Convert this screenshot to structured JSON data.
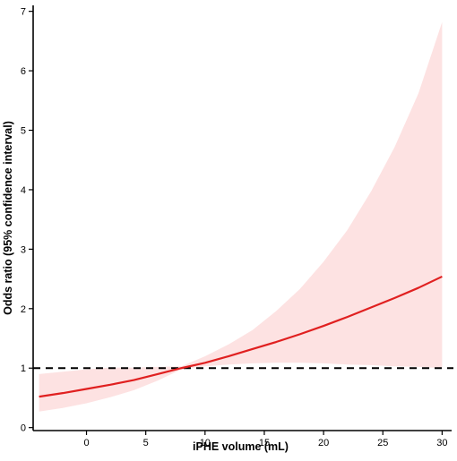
{
  "chart_data": {
    "type": "line",
    "title": "",
    "xlabel": "iPHE volume (mL)",
    "ylabel": "Odds ratio (95% confidence interval)",
    "xlim": [
      -4.5,
      30.5
    ],
    "ylim": [
      -0.05,
      7.1
    ],
    "x_ticks": [
      "0",
      "5",
      "10",
      "15",
      "20",
      "25",
      "30"
    ],
    "y_ticks": [
      "0",
      "1",
      "2",
      "3",
      "4",
      "5",
      "6",
      "7"
    ],
    "reference_line": {
      "y": 1,
      "style": "dashed",
      "color": "#000000"
    },
    "series": [
      {
        "color": "#e02020",
        "band_color": "#fde2e2",
        "x": [
          -4,
          -2,
          0,
          2,
          4,
          6,
          8,
          10,
          12,
          14,
          16,
          18,
          20,
          22,
          24,
          26,
          28,
          30
        ],
        "y": [
          0.52,
          0.58,
          0.65,
          0.72,
          0.8,
          0.9,
          1.0,
          1.09,
          1.2,
          1.32,
          1.44,
          1.57,
          1.71,
          1.86,
          2.02,
          2.18,
          2.35,
          2.54
        ],
        "lower": [
          0.27,
          0.33,
          0.41,
          0.51,
          0.63,
          0.79,
          0.98,
          1.03,
          1.06,
          1.08,
          1.09,
          1.09,
          1.08,
          1.06,
          1.05,
          1.03,
          1.02,
          1.0
        ],
        "upper": [
          0.9,
          0.94,
          0.98,
          1.01,
          1.01,
          1.02,
          1.03,
          1.2,
          1.4,
          1.64,
          1.96,
          2.33,
          2.79,
          3.32,
          3.97,
          4.72,
          5.62,
          6.82
        ]
      }
    ]
  }
}
